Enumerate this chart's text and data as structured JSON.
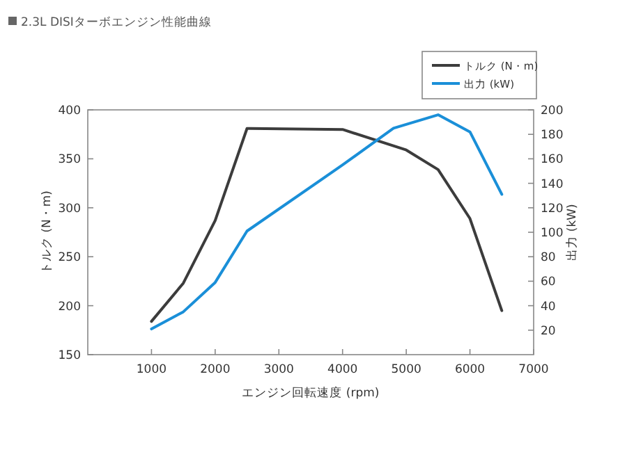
{
  "chart_data": {
    "type": "line",
    "title": "2.3L DISIターボエンジン性能曲線",
    "xlabel": "エンジン回転速度 (rpm)",
    "ylabel": "トルク (N・m)",
    "y2label": "出力 (kW)",
    "xlim": [
      0,
      7000
    ],
    "xticks": [
      1000,
      2000,
      3000,
      4000,
      5000,
      6000,
      7000
    ],
    "ylim": [
      150,
      400
    ],
    "yticks": [
      150,
      200,
      250,
      300,
      350,
      400
    ],
    "y2lim": [
      0,
      200
    ],
    "y2ticks": [
      20,
      40,
      60,
      80,
      100,
      120,
      140,
      160,
      180,
      200
    ],
    "grid": false,
    "legend": "top right",
    "marker": "none",
    "line_style": "solid",
    "series": [
      {
        "name": "トルク (N・m)",
        "color": "#3c3c3c",
        "x": [
          1000,
          1500,
          2000,
          2500,
          2550,
          4000,
          5000,
          5500,
          6000,
          6500
        ],
        "values": [
          184,
          223,
          287,
          381,
          381,
          380,
          359,
          339,
          289,
          195
        ]
      },
      {
        "name": "出力 (kW)",
        "color": "#1a8fd8",
        "axis": "y2",
        "x": [
          1000,
          1500,
          2000,
          2500,
          4000,
          4800,
          5500,
          6000,
          6500
        ],
        "values": [
          21,
          35,
          59,
          101,
          155,
          185,
          196,
          182,
          131
        ]
      }
    ]
  }
}
